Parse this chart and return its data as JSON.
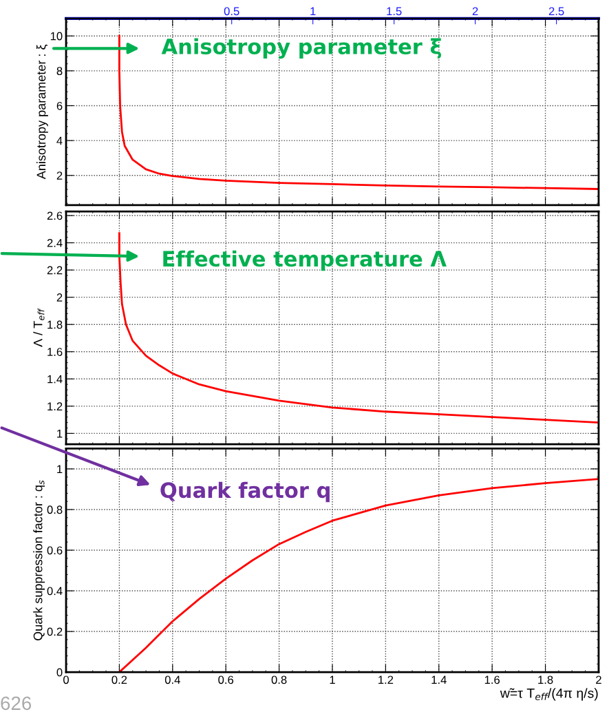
{
  "chart_data": [
    {
      "type": "line",
      "ylabel": "Anisotropy parameter : ξ",
      "xlim": [
        0,
        2
      ],
      "xticks": [
        0,
        0.2,
        0.4,
        0.6,
        0.8,
        1,
        1.2,
        1.4,
        1.6,
        1.8,
        2
      ],
      "ylim": [
        0.3,
        11
      ],
      "yticks": [
        2,
        4,
        6,
        8,
        10
      ],
      "x2lim": [
        -0.52,
        2.76
      ],
      "x2ticks": [
        0.5,
        1,
        1.5,
        2,
        2.5
      ],
      "grid": true,
      "tick_labels": "y",
      "line_style": "solid",
      "marker": "none",
      "series": [
        {
          "color": "#ff0000",
          "x": [
            0.2,
            0.2,
            0.203,
            0.21,
            0.22,
            0.25,
            0.3,
            0.35,
            0.4,
            0.5,
            0.6,
            0.8,
            1.0,
            1.2,
            1.4,
            1.6,
            1.8,
            2.0
          ],
          "values": [
            10,
            8,
            6,
            4.5,
            3.7,
            2.9,
            2.35,
            2.1,
            1.97,
            1.8,
            1.7,
            1.57,
            1.5,
            1.42,
            1.36,
            1.32,
            1.27,
            1.22
          ]
        }
      ],
      "annotations": [
        "Anisotropy parameter ξ"
      ]
    },
    {
      "type": "line",
      "ylabel": "Λ / T$_{eff}$",
      "xlim": [
        0,
        2
      ],
      "xticks": [
        0,
        0.2,
        0.4,
        0.6,
        0.8,
        1,
        1.2,
        1.4,
        1.6,
        1.8,
        2
      ],
      "ylim": [
        0.92,
        2.63
      ],
      "yticks": [
        1,
        1.2,
        1.4,
        1.6,
        1.8,
        2,
        2.2,
        2.4,
        2.6
      ],
      "grid": true,
      "tick_labels": "y",
      "line_style": "solid",
      "marker": "none",
      "series": [
        {
          "color": "#ff0000",
          "x": [
            0.2,
            0.2,
            0.205,
            0.21,
            0.225,
            0.25,
            0.3,
            0.35,
            0.4,
            0.5,
            0.6,
            0.8,
            1.0,
            1.2,
            1.4,
            1.6,
            1.8,
            2.0
          ],
          "values": [
            2.47,
            2.3,
            2.1,
            1.95,
            1.8,
            1.68,
            1.57,
            1.5,
            1.44,
            1.36,
            1.31,
            1.24,
            1.19,
            1.16,
            1.14,
            1.12,
            1.1,
            1.08
          ]
        }
      ],
      "annotations": [
        "Effective temperature Λ"
      ]
    },
    {
      "type": "line",
      "ylabel": "Quark suppression factor : q$_{s}$",
      "xlabel": "w̃=τ T$_{eff}$/(4π η/s)",
      "xlim": [
        0,
        2
      ],
      "xticks": [
        0,
        0.2,
        0.4,
        0.6,
        0.8,
        1,
        1.2,
        1.4,
        1.6,
        1.8,
        2
      ],
      "ylim": [
        0,
        1.1
      ],
      "yticks": [
        0,
        0.2,
        0.4,
        0.6,
        0.8,
        1
      ],
      "grid": true,
      "line_style": "solid",
      "marker": "none",
      "series": [
        {
          "color": "#ff0000",
          "x": [
            0.2,
            0.3,
            0.4,
            0.5,
            0.6,
            0.7,
            0.8,
            0.9,
            1.0,
            1.2,
            1.4,
            1.6,
            1.8,
            2.0
          ],
          "values": [
            0,
            0.12,
            0.25,
            0.36,
            0.46,
            0.55,
            0.63,
            0.69,
            0.745,
            0.82,
            0.87,
            0.905,
            0.93,
            0.95
          ]
        }
      ],
      "annotations": [
        "Quark factor q",
        "626"
      ]
    }
  ]
}
